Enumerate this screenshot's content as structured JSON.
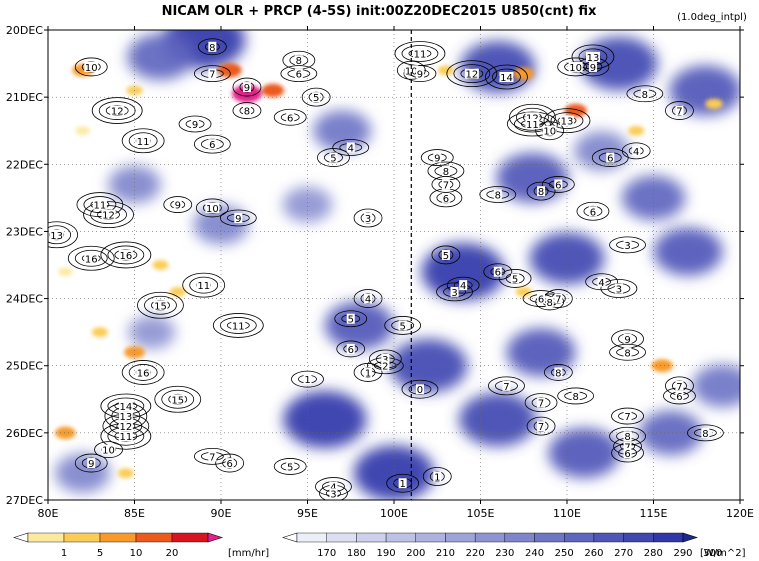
{
  "chart_data": {
    "type": "heatmap",
    "title": "NICAM  OLR + PRCP (4-5S) init:00Z20DEC2015  U850(cnt)  fix",
    "note": "(1.0deg_intpl)",
    "xlabel": "",
    "ylabel": "",
    "x_axis": {
      "range": [
        80,
        120
      ],
      "ticks": [
        80,
        85,
        90,
        95,
        100,
        105,
        110,
        115,
        120
      ],
      "tick_labels": [
        "80E",
        "85E",
        "90E",
        "95E",
        "100E",
        "105E",
        "110E",
        "115E",
        "120E"
      ]
    },
    "y_axis": {
      "range": [
        "20DEC",
        "27DEC"
      ],
      "ticks": [
        0,
        1,
        2,
        3,
        4,
        5,
        6,
        7
      ],
      "tick_labels": [
        "20DEC",
        "21DEC",
        "22DEC",
        "23DEC",
        "24DEC",
        "25DEC",
        "26DEC",
        "27DEC"
      ],
      "direction": "time increases downward"
    },
    "reference_line": {
      "x": 101,
      "style": "dashed"
    },
    "precip_colorbar": {
      "labels": [
        "1",
        "5",
        "10",
        "20"
      ],
      "unit": "[mm/hr]",
      "colors": [
        "#ffffff",
        "#fce9a0",
        "#fbcc55",
        "#f79a2a",
        "#ec5a1e",
        "#d8141e",
        "#e2228a"
      ]
    },
    "olr_colorbar": {
      "labels": [
        "170",
        "180",
        "190",
        "200",
        "210",
        "220",
        "230",
        "240",
        "250",
        "260",
        "270",
        "280",
        "290",
        "300"
      ],
      "unit": "[W/m^2]",
      "colors": [
        "#ffffff",
        "#eceef8",
        "#dcdff2",
        "#cdd0ec",
        "#bdc1e6",
        "#adb2e0",
        "#9ea3d9",
        "#8e94d3",
        "#7f85cc",
        "#6f75c5",
        "#5f66bf",
        "#5056b8",
        "#4047b1",
        "#3037a9",
        "#20288f"
      ]
    },
    "olr_blobs": [
      {
        "lon": 89,
        "day": 0.15,
        "olr": 290
      },
      {
        "lon": 86.5,
        "day": 0.4,
        "olr": 260
      },
      {
        "lon": 106,
        "day": 0.55,
        "olr": 275
      },
      {
        "lon": 113,
        "day": 0.5,
        "olr": 280
      },
      {
        "lon": 118,
        "day": 0.9,
        "olr": 270
      },
      {
        "lon": 97,
        "day": 1.5,
        "olr": 245
      },
      {
        "lon": 108,
        "day": 2.2,
        "olr": 270
      },
      {
        "lon": 112,
        "day": 1.8,
        "olr": 240
      },
      {
        "lon": 115,
        "day": 2.5,
        "olr": 255
      },
      {
        "lon": 104,
        "day": 3.6,
        "olr": 290
      },
      {
        "lon": 110,
        "day": 3.4,
        "olr": 275
      },
      {
        "lon": 117,
        "day": 3.3,
        "olr": 265
      },
      {
        "lon": 85,
        "day": 2.3,
        "olr": 235
      },
      {
        "lon": 90,
        "day": 2.9,
        "olr": 240
      },
      {
        "lon": 95,
        "day": 2.6,
        "olr": 230
      },
      {
        "lon": 98,
        "day": 4.4,
        "olr": 265
      },
      {
        "lon": 102,
        "day": 5.0,
        "olr": 280
      },
      {
        "lon": 96,
        "day": 5.8,
        "olr": 290
      },
      {
        "lon": 100,
        "day": 6.6,
        "olr": 285
      },
      {
        "lon": 106,
        "day": 5.8,
        "olr": 280
      },
      {
        "lon": 111,
        "day": 6.3,
        "olr": 270
      },
      {
        "lon": 116,
        "day": 6.0,
        "olr": 255
      },
      {
        "lon": 119,
        "day": 5.3,
        "olr": 250
      },
      {
        "lon": 108.5,
        "day": 4.8,
        "olr": 265
      },
      {
        "lon": 86,
        "day": 4.5,
        "olr": 225
      },
      {
        "lon": 82,
        "day": 6.6,
        "olr": 240
      }
    ],
    "precip_blobs": [
      {
        "lon": 91.5,
        "day": 0.95,
        "rate": 20
      },
      {
        "lon": 90.5,
        "day": 0.6,
        "rate": 10
      },
      {
        "lon": 93,
        "day": 0.9,
        "rate": 8
      },
      {
        "lon": 82,
        "day": 0.6,
        "rate": 6
      },
      {
        "lon": 85,
        "day": 0.9,
        "rate": 2
      },
      {
        "lon": 103,
        "day": 0.6,
        "rate": 2
      },
      {
        "lon": 107.5,
        "day": 0.65,
        "rate": 6
      },
      {
        "lon": 110.5,
        "day": 1.2,
        "rate": 8
      },
      {
        "lon": 114,
        "day": 1.5,
        "rate": 2
      },
      {
        "lon": 118.5,
        "day": 1.1,
        "rate": 3
      },
      {
        "lon": 86.5,
        "day": 3.5,
        "rate": 2
      },
      {
        "lon": 85,
        "day": 4.8,
        "rate": 6
      },
      {
        "lon": 83,
        "day": 4.5,
        "rate": 2
      },
      {
        "lon": 87.5,
        "day": 3.9,
        "rate": 2
      },
      {
        "lon": 81,
        "day": 6.0,
        "rate": 6
      },
      {
        "lon": 84.5,
        "day": 6.6,
        "rate": 2
      },
      {
        "lon": 115.5,
        "day": 5.0,
        "rate": 7
      },
      {
        "lon": 107.5,
        "day": 3.9,
        "rate": 2
      },
      {
        "lon": 81,
        "day": 3.6,
        "rate": 1
      },
      {
        "lon": 82,
        "day": 1.5,
        "rate": 1
      }
    ],
    "u850_contour_labels": [
      {
        "lon": 89.5,
        "day": 0.25,
        "label": "8"
      },
      {
        "lon": 82.5,
        "day": 0.55,
        "label": "10"
      },
      {
        "lon": 89.5,
        "day": 0.65,
        "label": "7"
      },
      {
        "lon": 91.5,
        "day": 0.85,
        "label": "9"
      },
      {
        "lon": 88.5,
        "day": 1.4,
        "label": "9"
      },
      {
        "lon": 89.5,
        "day": 1.7,
        "label": "6"
      },
      {
        "lon": 91.5,
        "day": 1.2,
        "label": "8"
      },
      {
        "lon": 94.5,
        "day": 0.45,
        "label": "8"
      },
      {
        "lon": 94.5,
        "day": 0.65,
        "label": "6"
      },
      {
        "lon": 95.5,
        "day": 1.0,
        "label": "5"
      },
      {
        "lon": 94,
        "day": 1.3,
        "label": "6"
      },
      {
        "lon": 84,
        "day": 1.2,
        "label": "12"
      },
      {
        "lon": 85.5,
        "day": 1.65,
        "label": "11"
      },
      {
        "lon": 96.5,
        "day": 1.9,
        "label": "5"
      },
      {
        "lon": 97.5,
        "day": 1.75,
        "label": "4"
      },
      {
        "lon": 98.5,
        "day": 2.8,
        "label": "3"
      },
      {
        "lon": 83,
        "day": 2.6,
        "label": "11"
      },
      {
        "lon": 83.5,
        "day": 2.75,
        "label": "12"
      },
      {
        "lon": 87.5,
        "day": 2.6,
        "label": "9"
      },
      {
        "lon": 89.5,
        "day": 2.65,
        "label": "10"
      },
      {
        "lon": 91,
        "day": 2.8,
        "label": "9"
      },
      {
        "lon": 80.5,
        "day": 3.05,
        "label": "13"
      },
      {
        "lon": 82.5,
        "day": 3.4,
        "label": "16"
      },
      {
        "lon": 84.5,
        "day": 3.35,
        "label": "16"
      },
      {
        "lon": 89,
        "day": 3.8,
        "label": "11"
      },
      {
        "lon": 86.5,
        "day": 4.1,
        "label": "15"
      },
      {
        "lon": 91,
        "day": 4.4,
        "label": "11"
      },
      {
        "lon": 98.5,
        "day": 4.0,
        "label": "4"
      },
      {
        "lon": 97.5,
        "day": 4.3,
        "label": "5"
      },
      {
        "lon": 100.5,
        "day": 4.4,
        "label": "5"
      },
      {
        "lon": 97.5,
        "day": 4.75,
        "label": "6"
      },
      {
        "lon": 99.5,
        "day": 4.9,
        "label": "3"
      },
      {
        "lon": 99.5,
        "day": 5.0,
        "label": "2"
      },
      {
        "lon": 98.5,
        "day": 5.1,
        "label": "1"
      },
      {
        "lon": 95,
        "day": 5.2,
        "label": "1"
      },
      {
        "lon": 101.5,
        "day": 5.35,
        "label": "0"
      },
      {
        "lon": 85.5,
        "day": 5.1,
        "label": "16"
      },
      {
        "lon": 87.5,
        "day": 5.5,
        "label": "15"
      },
      {
        "lon": 84.5,
        "day": 5.6,
        "label": "14"
      },
      {
        "lon": 84.5,
        "day": 5.75,
        "label": "13"
      },
      {
        "lon": 84.5,
        "day": 5.9,
        "label": "12"
      },
      {
        "lon": 84.5,
        "day": 6.05,
        "label": "11"
      },
      {
        "lon": 83.5,
        "day": 6.25,
        "label": "10"
      },
      {
        "lon": 82.5,
        "day": 6.45,
        "label": "9"
      },
      {
        "lon": 89.5,
        "day": 6.35,
        "label": "7"
      },
      {
        "lon": 90.5,
        "day": 6.45,
        "label": "6"
      },
      {
        "lon": 94,
        "day": 6.5,
        "label": "5"
      },
      {
        "lon": 96.5,
        "day": 6.8,
        "label": "4"
      },
      {
        "lon": 96.5,
        "day": 6.9,
        "label": "3"
      },
      {
        "lon": 100.5,
        "day": 6.75,
        "label": "1"
      },
      {
        "lon": 101.5,
        "day": 0.35,
        "label": "11"
      },
      {
        "lon": 101,
        "day": 0.6,
        "label": "10"
      },
      {
        "lon": 101.5,
        "day": 0.65,
        "label": "9"
      },
      {
        "lon": 104.5,
        "day": 0.65,
        "label": "12"
      },
      {
        "lon": 106.5,
        "day": 0.7,
        "label": "14"
      },
      {
        "lon": 108,
        "day": 1.3,
        "label": "12"
      },
      {
        "lon": 108,
        "day": 1.4,
        "label": "11"
      },
      {
        "lon": 109,
        "day": 1.5,
        "label": "10"
      },
      {
        "lon": 110,
        "day": 1.35,
        "label": "13"
      },
      {
        "lon": 110.5,
        "day": 0.55,
        "label": "10"
      },
      {
        "lon": 111.5,
        "day": 0.4,
        "label": "13"
      },
      {
        "lon": 111.5,
        "day": 0.55,
        "label": "9"
      },
      {
        "lon": 114.5,
        "day": 0.95,
        "label": "8"
      },
      {
        "lon": 116.5,
        "day": 1.2,
        "label": "7"
      },
      {
        "lon": 102.5,
        "day": 1.9,
        "label": "9"
      },
      {
        "lon": 103,
        "day": 2.1,
        "label": "8"
      },
      {
        "lon": 103,
        "day": 2.3,
        "label": "7"
      },
      {
        "lon": 103,
        "day": 2.5,
        "label": "6"
      },
      {
        "lon": 106,
        "day": 2.45,
        "label": "8"
      },
      {
        "lon": 108.5,
        "day": 2.4,
        "label": "8"
      },
      {
        "lon": 109.5,
        "day": 2.3,
        "label": "6"
      },
      {
        "lon": 112.5,
        "day": 1.9,
        "label": "6"
      },
      {
        "lon": 114,
        "day": 1.8,
        "label": "4"
      },
      {
        "lon": 111.5,
        "day": 2.7,
        "label": "6"
      },
      {
        "lon": 113.5,
        "day": 3.2,
        "label": "3"
      },
      {
        "lon": 103,
        "day": 3.35,
        "label": "5"
      },
      {
        "lon": 104,
        "day": 3.8,
        "label": "4"
      },
      {
        "lon": 103.5,
        "day": 3.9,
        "label": "3"
      },
      {
        "lon": 106,
        "day": 3.6,
        "label": "6"
      },
      {
        "lon": 107,
        "day": 3.7,
        "label": "5"
      },
      {
        "lon": 108.5,
        "day": 4.0,
        "label": "6"
      },
      {
        "lon": 109.5,
        "day": 4.0,
        "label": "7"
      },
      {
        "lon": 112,
        "day": 3.75,
        "label": "4"
      },
      {
        "lon": 113,
        "day": 3.85,
        "label": "3"
      },
      {
        "lon": 109,
        "day": 4.05,
        "label": "8"
      },
      {
        "lon": 113.5,
        "day": 4.6,
        "label": "9"
      },
      {
        "lon": 113.5,
        "day": 4.8,
        "label": "8"
      },
      {
        "lon": 116.5,
        "day": 5.3,
        "label": "7"
      },
      {
        "lon": 116.5,
        "day": 5.45,
        "label": "6"
      },
      {
        "lon": 106.5,
        "day": 5.3,
        "label": "7"
      },
      {
        "lon": 109.5,
        "day": 5.1,
        "label": "8"
      },
      {
        "lon": 108.5,
        "day": 5.55,
        "label": "7"
      },
      {
        "lon": 110.5,
        "day": 5.45,
        "label": "8"
      },
      {
        "lon": 108.5,
        "day": 5.9,
        "label": "7"
      },
      {
        "lon": 113.5,
        "day": 5.75,
        "label": "7"
      },
      {
        "lon": 113.5,
        "day": 6.05,
        "label": "8"
      },
      {
        "lon": 113.5,
        "day": 6.2,
        "label": "7"
      },
      {
        "lon": 113.5,
        "day": 6.3,
        "label": "6"
      },
      {
        "lon": 118,
        "day": 6.0,
        "label": "8"
      },
      {
        "lon": 102.5,
        "day": 6.65,
        "label": "1"
      }
    ]
  }
}
